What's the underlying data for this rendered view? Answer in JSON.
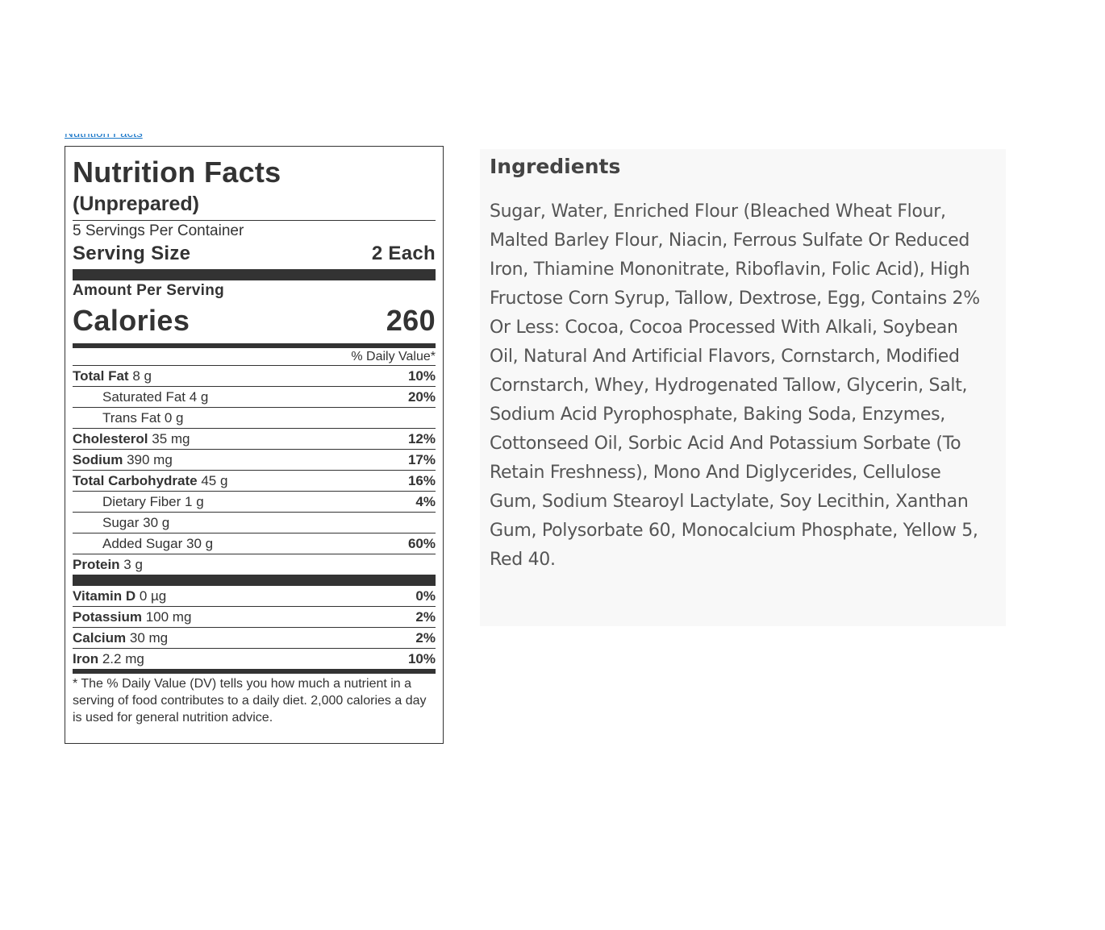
{
  "page": {
    "top_link_text": "Nutrition Facts"
  },
  "nutrition": {
    "title": "Nutrition Facts",
    "subtitle": "(Unprepared)",
    "servings_per_container": "5 Servings Per Container",
    "serving_size_label": "Serving Size",
    "serving_size_value": "2 Each",
    "amount_per_serving": "Amount Per Serving",
    "calories_label": "Calories",
    "calories_value": "260",
    "daily_value_header": "% Daily Value*",
    "rows": [
      {
        "name": "Total Fat",
        "amount": "8 g",
        "dv": "10%",
        "bold": true,
        "indent": false
      },
      {
        "name": "Saturated Fat",
        "amount": "4 g",
        "dv": "20%",
        "bold": false,
        "indent": true
      },
      {
        "name": "Trans Fat",
        "amount": "0 g",
        "dv": "",
        "bold": false,
        "indent": true
      },
      {
        "name": "Cholesterol",
        "amount": "35 mg",
        "dv": "12%",
        "bold": true,
        "indent": false
      },
      {
        "name": "Sodium",
        "amount": "390 mg",
        "dv": "17%",
        "bold": true,
        "indent": false
      },
      {
        "name": "Total Carbohydrate",
        "amount": "45 g",
        "dv": "16%",
        "bold": true,
        "indent": false
      },
      {
        "name": "Dietary Fiber",
        "amount": "1 g",
        "dv": "4%",
        "bold": false,
        "indent": true
      },
      {
        "name": "Sugar",
        "amount": "30 g",
        "dv": "",
        "bold": false,
        "indent": true
      },
      {
        "name": "Added Sugar",
        "amount": "30 g",
        "dv": "60%",
        "bold": false,
        "indent": true
      },
      {
        "name": "Protein",
        "amount": "3 g",
        "dv": "",
        "bold": true,
        "indent": false
      }
    ],
    "vitamins": [
      {
        "name": "Vitamin D",
        "amount": "0 µg",
        "dv": "0%"
      },
      {
        "name": "Potassium",
        "amount": "100 mg",
        "dv": "2%"
      },
      {
        "name": "Calcium",
        "amount": "30 mg",
        "dv": "2%"
      },
      {
        "name": "Iron",
        "amount": "2.2 mg",
        "dv": "10%"
      }
    ],
    "footnote": "* The % Daily Value (DV) tells you how much a nutrient in a serving of food contributes to a daily diet. 2,000 calories a day is used for general nutrition advice."
  },
  "ingredients": {
    "title": "Ingredients",
    "text": "Sugar, Water, Enriched Flour (Bleached Wheat Flour, Malted Barley Flour, Niacin, Ferrous Sulfate Or Reduced Iron, Thiamine Mononitrate, Riboflavin, Folic Acid), High Fructose Corn Syrup, Tallow, Dextrose, Egg, Contains 2% Or Less: Cocoa, Cocoa Processed With Alkali, Soybean Oil, Natural And Artificial Flavors, Cornstarch, Modified Cornstarch, Whey, Hydrogenated Tallow, Glycerin, Salt, Sodium Acid Pyrophosphate, Baking Soda, Enzymes, Cottonseed Oil, Sorbic Acid And Potassium Sorbate (To Retain Freshness), Mono And Diglycerides, Cellulose Gum, Sodium Stearoyl Lactylate, Soy Lecithin, Xanthan Gum, Polysorbate 60, Monocalcium Phosphate, Yellow 5, Red 40."
  }
}
